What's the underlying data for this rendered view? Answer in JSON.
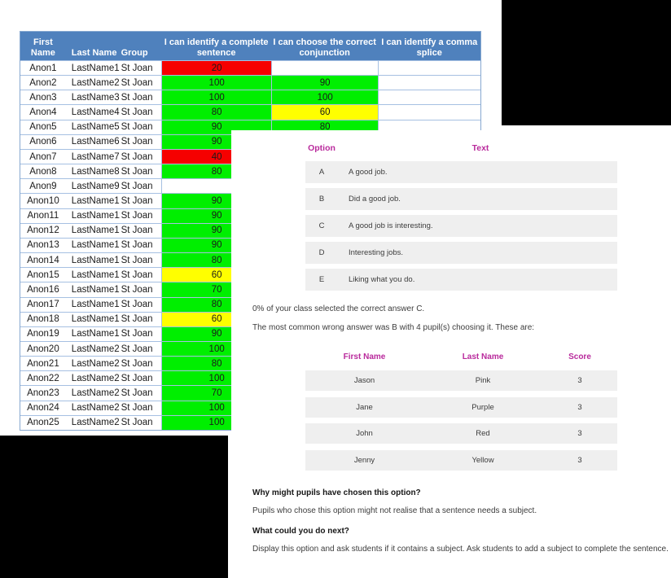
{
  "colors": {
    "header_blue": "#4f81bd",
    "grid_blue": "#a6c0e2",
    "score_green": "#00ef00",
    "score_red": "#f60000",
    "score_yellow": "#ffff00",
    "accent_magenta": "#b92a9c",
    "row_gray": "#efefef"
  },
  "gradebook": {
    "headers": [
      "First Name",
      "Last Name",
      "Group",
      "I can identify a complete sentence",
      "I can choose the correct conjunction",
      "I can identify a comma splice"
    ],
    "rows": [
      {
        "first": "Anon1",
        "last": "LastName1",
        "group": "St Joan",
        "s1": "20",
        "c1": "red",
        "s2": "",
        "c2": "",
        "s3": ""
      },
      {
        "first": "Anon2",
        "last": "LastName2",
        "group": "St Joan",
        "s1": "100",
        "c1": "green",
        "s2": "90",
        "c2": "green",
        "s3": ""
      },
      {
        "first": "Anon3",
        "last": "LastName3",
        "group": "St Joan",
        "s1": "100",
        "c1": "green",
        "s2": "100",
        "c2": "green",
        "s3": ""
      },
      {
        "first": "Anon4",
        "last": "LastName4",
        "group": "St Joan",
        "s1": "80",
        "c1": "green",
        "s2": "60",
        "c2": "yellow",
        "s3": ""
      },
      {
        "first": "Anon5",
        "last": "LastName5",
        "group": "St Joan",
        "s1": "90",
        "c1": "green",
        "s2": "80",
        "c2": "green",
        "s3": ""
      },
      {
        "first": "Anon6",
        "last": "LastName6",
        "group": "St Joan",
        "s1": "90",
        "c1": "green",
        "s2": "",
        "c2": "",
        "s3": ""
      },
      {
        "first": "Anon7",
        "last": "LastName7",
        "group": "St Joan",
        "s1": "40",
        "c1": "red",
        "s2": "",
        "c2": "",
        "s3": ""
      },
      {
        "first": "Anon8",
        "last": "LastName8",
        "group": "St Joan",
        "s1": "80",
        "c1": "green",
        "s2": "",
        "c2": "",
        "s3": ""
      },
      {
        "first": "Anon9",
        "last": "LastName9",
        "group": "St Joan",
        "s1": "",
        "c1": "",
        "s2": "",
        "c2": "",
        "s3": ""
      },
      {
        "first": "Anon10",
        "last": "LastName10",
        "group": "St Joan",
        "s1": "90",
        "c1": "green",
        "s2": "",
        "c2": "",
        "s3": ""
      },
      {
        "first": "Anon11",
        "last": "LastName11",
        "group": "St Joan",
        "s1": "90",
        "c1": "green",
        "s2": "",
        "c2": "",
        "s3": ""
      },
      {
        "first": "Anon12",
        "last": "LastName12",
        "group": "St Joan",
        "s1": "90",
        "c1": "green",
        "s2": "",
        "c2": "",
        "s3": ""
      },
      {
        "first": "Anon13",
        "last": "LastName13",
        "group": "St Joan",
        "s1": "90",
        "c1": "green",
        "s2": "",
        "c2": "",
        "s3": ""
      },
      {
        "first": "Anon14",
        "last": "LastName14",
        "group": "St Joan",
        "s1": "80",
        "c1": "green",
        "s2": "",
        "c2": "",
        "s3": ""
      },
      {
        "first": "Anon15",
        "last": "LastName15",
        "group": "St Joan",
        "s1": "60",
        "c1": "yellow",
        "s2": "",
        "c2": "",
        "s3": ""
      },
      {
        "first": "Anon16",
        "last": "LastName16",
        "group": "St Joan",
        "s1": "70",
        "c1": "green",
        "s2": "",
        "c2": "",
        "s3": ""
      },
      {
        "first": "Anon17",
        "last": "LastName17",
        "group": "St Joan",
        "s1": "80",
        "c1": "green",
        "s2": "",
        "c2": "",
        "s3": ""
      },
      {
        "first": "Anon18",
        "last": "LastName18",
        "group": "St Joan",
        "s1": "60",
        "c1": "yellow",
        "s2": "",
        "c2": "",
        "s3": ""
      },
      {
        "first": "Anon19",
        "last": "LastName19",
        "group": "St Joan",
        "s1": "90",
        "c1": "green",
        "s2": "",
        "c2": "",
        "s3": ""
      },
      {
        "first": "Anon20",
        "last": "LastName20",
        "group": "St Joan",
        "s1": "100",
        "c1": "green",
        "s2": "",
        "c2": "",
        "s3": ""
      },
      {
        "first": "Anon21",
        "last": "LastName21",
        "group": "St Joan",
        "s1": "80",
        "c1": "green",
        "s2": "",
        "c2": "",
        "s3": ""
      },
      {
        "first": "Anon22",
        "last": "LastName22",
        "group": "St Joan",
        "s1": "100",
        "c1": "green",
        "s2": "",
        "c2": "",
        "s3": ""
      },
      {
        "first": "Anon23",
        "last": "LastName23",
        "group": "St Joan",
        "s1": "70",
        "c1": "green",
        "s2": "",
        "c2": "",
        "s3": ""
      },
      {
        "first": "Anon24",
        "last": "LastName24",
        "group": "St Joan",
        "s1": "100",
        "c1": "green",
        "s2": "",
        "c2": "",
        "s3": ""
      },
      {
        "first": "Anon25",
        "last": "LastName25",
        "group": "St Joan",
        "s1": "100",
        "c1": "green",
        "s2": "",
        "c2": "",
        "s3": ""
      }
    ]
  },
  "panel": {
    "option_header": "Option",
    "text_header": "Text",
    "options": [
      {
        "letter": "A",
        "text": "A good job."
      },
      {
        "letter": "B",
        "text": "Did a good job."
      },
      {
        "letter": "C",
        "text": "A good job is interesting."
      },
      {
        "letter": "D",
        "text": "Interesting jobs."
      },
      {
        "letter": "E",
        "text": "Liking what you do."
      }
    ],
    "stats_line1": "0% of your class selected the correct answer C.",
    "stats_line2": "The most common wrong answer was B with 4 pupil(s) choosing it. These are:",
    "students": {
      "headers": [
        "First Name",
        "Last Name",
        "Score"
      ],
      "rows": [
        {
          "first": "Jason",
          "last": "Pink",
          "score": "3"
        },
        {
          "first": "Jane",
          "last": "Purple",
          "score": "3"
        },
        {
          "first": "John",
          "last": "Red",
          "score": "3"
        },
        {
          "first": "Jenny",
          "last": "Yellow",
          "score": "3"
        }
      ]
    },
    "why_heading": "Why might pupils have chosen this option?",
    "why_body": "Pupils who chose this option might not realise that a sentence needs a subject.",
    "next_heading": "What could you do next?",
    "next_body": "Display this option and ask students if it contains a subject. Ask students to add a subject to complete the sentence."
  }
}
